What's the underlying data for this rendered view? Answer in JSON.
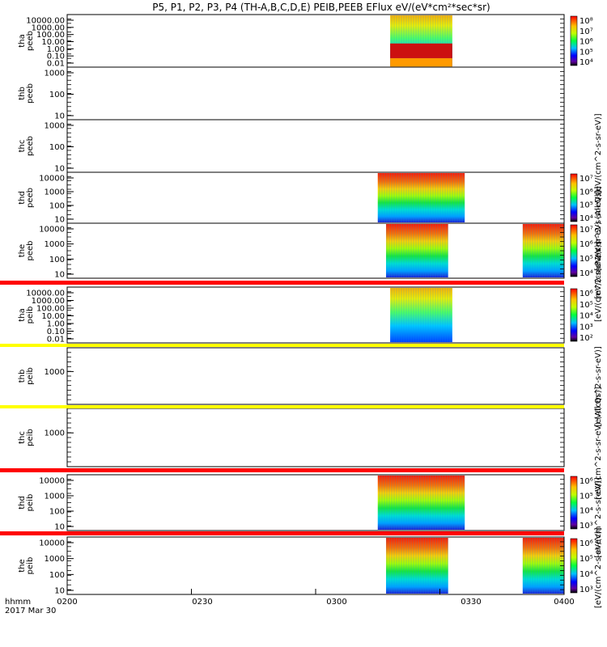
{
  "chart_data": {
    "type": "heatmap",
    "title": "P5, P1, P2, P3, P4 (TH-A,B,C,D,E) PEIB,PEEB EFlux eV/(eV*cm²*sec*sr)",
    "x": {
      "label": "hhmm",
      "date": "2017 Mar 30",
      "ticks": [
        "0200",
        "0230",
        "0300",
        "0330",
        "0400"
      ],
      "range": [
        "02:00",
        "04:00"
      ]
    },
    "colorbar_labels": [
      "[eV/(cm^2-s-sr-eV)]",
      "[eV/(cm^2-s-sr-eV) (All Qs)]",
      "[eV/(cm^2-s-sr-eV)]",
      "[eV/(cm^2-s-sr-eV)]",
      "[eV/(cm^2-s-sr-eV)]",
      "[eV/(cm^2-s-sr-eV) (All Qs)]",
      "[eV/(cm^2-s-sr-eV)]",
      "[eV/(cm^2-s-sr-eV)]"
    ],
    "panels": [
      {
        "probe": "tha",
        "instrument": "peeb",
        "ylabel": "tha\npeeb",
        "yscale": "log",
        "yticks": [
          "10000.00",
          "1000.00",
          "100.00",
          "10.00",
          "1.00",
          "0.10",
          "0.01"
        ],
        "data_windows": [
          [
            "03:18",
            "03:33"
          ]
        ],
        "colorbar_ticks": [
          "10⁸",
          "10⁷",
          "10⁶",
          "10⁵",
          "10⁴"
        ]
      },
      {
        "probe": "thb",
        "instrument": "peeb",
        "ylabel": "thb\npeeb",
        "yscale": "log",
        "yticks": [
          "1000",
          "100",
          "10"
        ],
        "data_windows": [],
        "colorbar_ticks": []
      },
      {
        "probe": "thc",
        "instrument": "peeb",
        "ylabel": "thc\npeeb",
        "yscale": "log",
        "yticks": [
          "1000",
          "100",
          "10"
        ],
        "data_windows": [],
        "colorbar_ticks": []
      },
      {
        "probe": "thd",
        "instrument": "peeb",
        "ylabel": "thd\npeeb",
        "yscale": "log",
        "yticks": [
          "10000",
          "1000",
          "100",
          "10"
        ],
        "data_windows": [
          [
            "03:15",
            "03:36"
          ]
        ],
        "colorbar_ticks": [
          "10⁷",
          "10⁶",
          "10⁵",
          "10⁴"
        ]
      },
      {
        "probe": "the",
        "instrument": "peeb",
        "ylabel": "the\npeeb",
        "yscale": "log",
        "yticks": [
          "10000",
          "1000",
          "100",
          "10"
        ],
        "data_windows": [
          [
            "03:17",
            "03:32"
          ],
          [
            "03:50",
            "04:00"
          ]
        ],
        "colorbar_ticks": [
          "10⁷",
          "10⁶",
          "10⁵",
          "10⁴"
        ]
      },
      {
        "probe": "tha",
        "instrument": "peib",
        "ylabel": "tha\npeib",
        "yscale": "log",
        "yticks": [
          "10000.00",
          "1000.00",
          "100.00",
          "10.00",
          "1.00",
          "0.10",
          "0.01"
        ],
        "data_windows": [
          [
            "03:18",
            "03:33"
          ]
        ],
        "colorbar_ticks": [
          "10⁶",
          "10⁵",
          "10⁴",
          "10³",
          "10²"
        ]
      },
      {
        "probe": "thb",
        "instrument": "peib",
        "ylabel": "thb\npeib",
        "yscale": "log",
        "yticks": [
          "1000"
        ],
        "data_windows": [],
        "colorbar_ticks": []
      },
      {
        "probe": "thc",
        "instrument": "peib",
        "ylabel": "thc\npeib",
        "yscale": "log",
        "yticks": [
          "1000"
        ],
        "data_windows": [],
        "colorbar_ticks": []
      },
      {
        "probe": "thd",
        "instrument": "peib",
        "ylabel": "thd\npeib",
        "yscale": "log",
        "yticks": [
          "10000",
          "1000",
          "100",
          "10"
        ],
        "data_windows": [
          [
            "03:15",
            "03:36"
          ]
        ],
        "colorbar_ticks": [
          "10⁶",
          "10⁵",
          "10⁴",
          "10³"
        ]
      },
      {
        "probe": "the",
        "instrument": "peib",
        "ylabel": "the\npeib",
        "yscale": "log",
        "yticks": [
          "10000",
          "1000",
          "100",
          "10"
        ],
        "data_windows": [
          [
            "03:17",
            "03:32"
          ],
          [
            "03:50",
            "04:00"
          ]
        ],
        "colorbar_ticks": [
          "10⁶",
          "10⁵",
          "10⁴",
          "10³"
        ]
      }
    ]
  }
}
